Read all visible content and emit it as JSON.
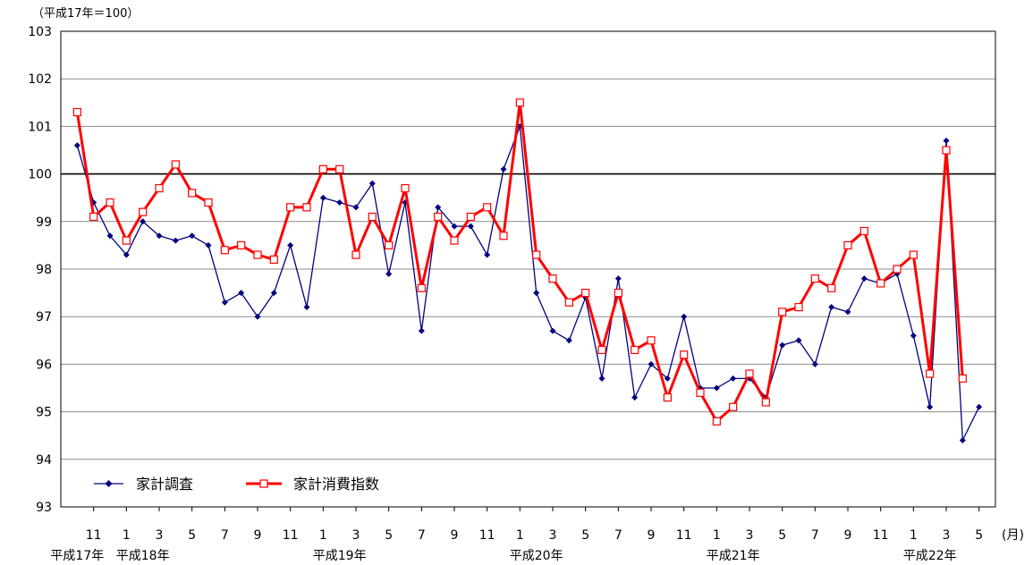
{
  "chart_data": {
    "type": "line",
    "unit_label": "（平成17年＝100）",
    "ylim": [
      93,
      103
    ],
    "yticks": [
      93,
      94,
      95,
      96,
      97,
      98,
      99,
      100,
      101,
      102,
      103
    ],
    "reference_line": 100,
    "grid": true,
    "legend_position": "bottom-left",
    "x_count": 56,
    "month_ticks": [
      {
        "i": 1,
        "label": "11"
      },
      {
        "i": 3,
        "label": "1"
      },
      {
        "i": 5,
        "label": "3"
      },
      {
        "i": 7,
        "label": "5"
      },
      {
        "i": 9,
        "label": "7"
      },
      {
        "i": 11,
        "label": "9"
      },
      {
        "i": 13,
        "label": "11"
      },
      {
        "i": 15,
        "label": "1"
      },
      {
        "i": 17,
        "label": "3"
      },
      {
        "i": 19,
        "label": "5"
      },
      {
        "i": 21,
        "label": "7"
      },
      {
        "i": 23,
        "label": "9"
      },
      {
        "i": 25,
        "label": "11"
      },
      {
        "i": 27,
        "label": "1"
      },
      {
        "i": 29,
        "label": "3"
      },
      {
        "i": 31,
        "label": "5"
      },
      {
        "i": 33,
        "label": "7"
      },
      {
        "i": 35,
        "label": "9"
      },
      {
        "i": 37,
        "label": "11"
      },
      {
        "i": 39,
        "label": "1"
      },
      {
        "i": 41,
        "label": "3"
      },
      {
        "i": 43,
        "label": "5"
      },
      {
        "i": 45,
        "label": "7"
      },
      {
        "i": 47,
        "label": "9"
      },
      {
        "i": 49,
        "label": "11"
      },
      {
        "i": 51,
        "label": "1"
      },
      {
        "i": 53,
        "label": "3"
      },
      {
        "i": 55,
        "label": "5"
      }
    ],
    "month_suffix": "(月)",
    "year_labels": [
      {
        "i": 0,
        "label": "平成17年"
      },
      {
        "i": 4,
        "label": "平成18年"
      },
      {
        "i": 16,
        "label": "平成19年"
      },
      {
        "i": 28,
        "label": "平成20年"
      },
      {
        "i": 40,
        "label": "平成21年"
      },
      {
        "i": 52,
        "label": "平成22年"
      }
    ],
    "series": [
      {
        "name": "家計調査",
        "color": "#000080",
        "marker": "diamond",
        "values": [
          100.6,
          99.4,
          98.7,
          98.3,
          99.0,
          98.7,
          98.6,
          98.7,
          98.5,
          97.3,
          97.5,
          97.0,
          97.5,
          98.5,
          97.2,
          99.5,
          99.4,
          99.3,
          99.8,
          97.9,
          99.4,
          96.7,
          99.3,
          98.9,
          98.9,
          98.3,
          100.1,
          101.0,
          97.5,
          96.7,
          96.5,
          97.4,
          95.7,
          97.8,
          95.3,
          96.0,
          95.7,
          97.0,
          95.5,
          95.5,
          95.7,
          95.7,
          95.3,
          96.4,
          96.5,
          96.0,
          97.2,
          97.1,
          97.8,
          97.7,
          97.9,
          96.6,
          95.1,
          100.7,
          94.4,
          95.1
        ]
      },
      {
        "name": "家計消費指数",
        "color": "#ff0000",
        "marker": "square",
        "values": [
          101.3,
          99.1,
          99.4,
          98.6,
          99.2,
          99.7,
          100.2,
          99.6,
          99.4,
          98.4,
          98.5,
          98.3,
          98.2,
          99.3,
          99.3,
          100.1,
          100.1,
          98.3,
          99.1,
          98.5,
          99.7,
          97.6,
          99.1,
          98.6,
          99.1,
          99.3,
          98.7,
          101.5,
          98.3,
          97.8,
          97.3,
          97.5,
          96.3,
          97.5,
          96.3,
          96.5,
          95.3,
          96.2,
          95.4,
          94.8,
          95.1,
          95.8,
          95.2,
          97.1,
          97.2,
          97.8,
          97.6,
          98.5,
          98.8,
          97.7,
          98.0,
          98.3,
          95.8,
          100.5,
          95.7,
          null
        ]
      }
    ]
  }
}
